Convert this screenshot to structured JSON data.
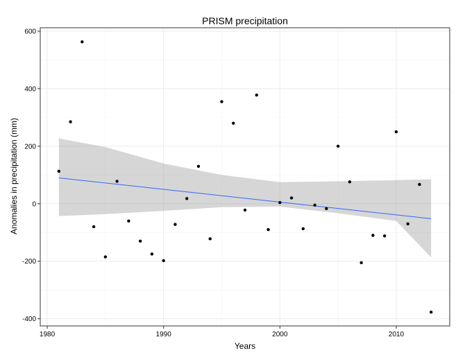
{
  "chart_data": {
    "type": "scatter",
    "title": "PRISM precipitation",
    "xlabel": "Years",
    "ylabel": "Anomalies in precipitation (mm)",
    "xlim": [
      1979.4,
      2014.6
    ],
    "ylim": [
      -425,
      612
    ],
    "x_ticks": [
      1980,
      1990,
      2000,
      2010
    ],
    "y_ticks": [
      -400,
      -200,
      0,
      200,
      400,
      600
    ],
    "grid": true,
    "colors": {
      "points": "#000000",
      "trend": "#3366ff",
      "band": "#999999",
      "grid": "#ebebeb",
      "border": "#333333"
    },
    "points": [
      {
        "x": 1981,
        "y": 113
      },
      {
        "x": 1982,
        "y": 285
      },
      {
        "x": 1983,
        "y": 563
      },
      {
        "x": 1984,
        "y": -80
      },
      {
        "x": 1985,
        "y": -185
      },
      {
        "x": 1986,
        "y": 78
      },
      {
        "x": 1987,
        "y": -60
      },
      {
        "x": 1988,
        "y": -130
      },
      {
        "x": 1989,
        "y": -175
      },
      {
        "x": 1990,
        "y": -198
      },
      {
        "x": 1991,
        "y": -72
      },
      {
        "x": 1992,
        "y": 18
      },
      {
        "x": 1993,
        "y": 130
      },
      {
        "x": 1994,
        "y": -122
      },
      {
        "x": 1995,
        "y": 355
      },
      {
        "x": 1996,
        "y": 280
      },
      {
        "x": 1997,
        "y": -22
      },
      {
        "x": 1998,
        "y": 378
      },
      {
        "x": 1999,
        "y": -90
      },
      {
        "x": 2000,
        "y": 4
      },
      {
        "x": 2001,
        "y": 20
      },
      {
        "x": 2002,
        "y": -87
      },
      {
        "x": 2003,
        "y": -5
      },
      {
        "x": 2004,
        "y": -17
      },
      {
        "x": 2005,
        "y": 200
      },
      {
        "x": 2006,
        "y": 76
      },
      {
        "x": 2007,
        "y": -205
      },
      {
        "x": 2008,
        "y": -110
      },
      {
        "x": 2009,
        "y": -112
      },
      {
        "x": 2010,
        "y": 250
      },
      {
        "x": 2011,
        "y": -70
      },
      {
        "x": 2012,
        "y": 67
      },
      {
        "x": 2013,
        "y": -377
      }
    ],
    "trend": {
      "x": [
        1981,
        2013
      ],
      "y": [
        90,
        -52
      ]
    },
    "confidence_band": [
      {
        "x": 1981,
        "lower": -43,
        "upper": 227
      },
      {
        "x": 1985,
        "lower": -36,
        "upper": 197
      },
      {
        "x": 1990,
        "lower": -25,
        "upper": 140
      },
      {
        "x": 1995,
        "lower": -12,
        "upper": 100
      },
      {
        "x": 2000,
        "lower": -10,
        "upper": 75
      },
      {
        "x": 2005,
        "lower": -33,
        "upper": 78
      },
      {
        "x": 2010,
        "lower": -60,
        "upper": 82
      },
      {
        "x": 2013,
        "lower": -187,
        "upper": 85
      }
    ]
  }
}
